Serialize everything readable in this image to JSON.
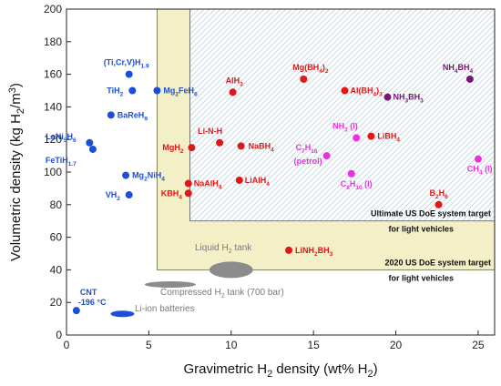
{
  "chart_data": {
    "type": "scatter",
    "xlabel": "Gravimetric H2 density (wt% H2)",
    "ylabel": "Volumetric density (kg H2/m3)",
    "xlim": [
      0,
      26
    ],
    "ylim": [
      0,
      200
    ],
    "xticks": [
      "0",
      "5",
      "10",
      "15",
      "20",
      "25"
    ],
    "yticks": [
      "0",
      "20",
      "40",
      "60",
      "80",
      "100",
      "120",
      "140",
      "160",
      "180",
      "200"
    ],
    "grid": false,
    "colors": {
      "blue": "#1a4fd6",
      "red": "#e01717",
      "magenta": "#ee2fe0",
      "purple": "#7a1575",
      "gray": "#8c8c8c",
      "target_2020": "#f3efc7",
      "target_ultimate": "#b9dbe8"
    },
    "targets": [
      {
        "name": "2020 US DoE system target",
        "note": "for light vehicles",
        "x_min": 5.5,
        "y_min": 40
      },
      {
        "name": "Ultimate US DoE system target",
        "note": "for light vehicles",
        "x_min": 7.5,
        "y_min": 70
      }
    ],
    "reference_blobs": [
      {
        "name": "Liquid H2 tank",
        "x": 10.0,
        "y": 40,
        "color": "#8c8c8c"
      },
      {
        "name": "Compressed H2 tank (700 bar)",
        "x": 6.3,
        "y": 31,
        "color": "#8c8c8c"
      },
      {
        "name": "Li-ion batteries",
        "x": 3.4,
        "y": 13,
        "color": "#1a4fd6"
      }
    ],
    "series": [
      {
        "name": "blue",
        "color": "#1a4fd6",
        "points": [
          {
            "label": "(Ti,Cr,V)H1.9",
            "x": 3.8,
            "y": 160
          },
          {
            "label": "TiH2",
            "x": 4.0,
            "y": 150
          },
          {
            "label": "Mg2FeH6",
            "x": 5.5,
            "y": 150
          },
          {
            "label": "BaReH9",
            "x": 2.7,
            "y": 135
          },
          {
            "label": "LaNi5H6",
            "x": 1.4,
            "y": 118
          },
          {
            "label": "FeTiH1.7",
            "x": 1.6,
            "y": 114
          },
          {
            "label": "Mg2NiH4",
            "x": 3.6,
            "y": 98
          },
          {
            "label": "VH2",
            "x": 3.8,
            "y": 86
          },
          {
            "label": "CNT -196 °C",
            "x": 0.6,
            "y": 15
          }
        ]
      },
      {
        "name": "red",
        "color": "#e01717",
        "points": [
          {
            "label": "AlH3",
            "x": 10.1,
            "y": 149
          },
          {
            "label": "Mg(BH4)2",
            "x": 14.4,
            "y": 157
          },
          {
            "label": "Al(BH4)3",
            "x": 16.9,
            "y": 150
          },
          {
            "label": "Li-N-H",
            "x": 9.3,
            "y": 118
          },
          {
            "label": "MgH2",
            "x": 7.6,
            "y": 115
          },
          {
            "label": "NaBH4",
            "x": 10.6,
            "y": 116
          },
          {
            "label": "LiBH4",
            "x": 18.5,
            "y": 122
          },
          {
            "label": "NaAlH4",
            "x": 7.4,
            "y": 93
          },
          {
            "label": "KBH4",
            "x": 7.4,
            "y": 87
          },
          {
            "label": "LiAlH4",
            "x": 10.5,
            "y": 95
          },
          {
            "label": "B2H6",
            "x": 22.6,
            "y": 80
          },
          {
            "label": "LiNH2BH3",
            "x": 13.5,
            "y": 52
          }
        ]
      },
      {
        "name": "magenta",
        "color": "#ee2fe0",
        "points": [
          {
            "label": "NH3 (l)",
            "x": 17.6,
            "y": 121
          },
          {
            "label": "C7H16 (petrol)",
            "x": 15.8,
            "y": 110
          },
          {
            "label": "C8H10 (l)",
            "x": 17.3,
            "y": 99
          },
          {
            "label": "CH4 (l)",
            "x": 25.0,
            "y": 108
          }
        ]
      },
      {
        "name": "purple",
        "color": "#7a1575",
        "points": [
          {
            "label": "NH3BH3",
            "x": 19.5,
            "y": 146
          },
          {
            "label": "NH4BH4",
            "x": 24.5,
            "y": 157
          }
        ]
      }
    ]
  }
}
